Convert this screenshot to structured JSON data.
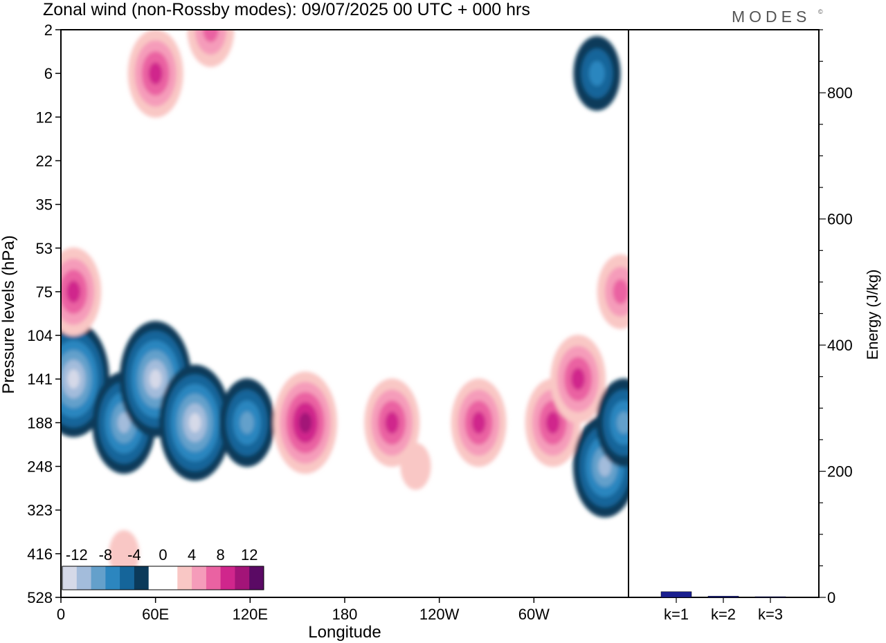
{
  "title": "Zonal wind (non-Rossby modes):  09/07/2025  00 UTC  + 000 hrs",
  "brand": "MODES",
  "brand_mark": "©",
  "colors": {
    "neg": [
      "#0b3a5a",
      "#15659a",
      "#2c86bf",
      "#64a0cb",
      "#a3bcdb",
      "#d5d9e8"
    ],
    "pos": [
      "#f9c7c5",
      "#f59cba",
      "#ea62a2",
      "#d0268c",
      "#a31478",
      "#5a0a64"
    ],
    "bar": "#1a1f8f"
  },
  "chart_data": [
    {
      "type": "heatmap",
      "title": "Zonal wind (non-Rossby modes):  09/07/2025  00 UTC  + 000 hrs",
      "xlabel": "Longitude",
      "ylabel": "Pressure levels (hPa)",
      "x_ticks": [
        "0",
        "60E",
        "120E",
        "180",
        "120W",
        "60W"
      ],
      "y_ticks": [
        "2",
        "6",
        "12",
        "22",
        "35",
        "53",
        "75",
        "104",
        "141",
        "188",
        "248",
        "323",
        "416",
        "528"
      ],
      "colorbar_labels": [
        "-12",
        "-8",
        "-4",
        "0",
        "4",
        "8",
        "12"
      ],
      "color_levels": [
        -14,
        -12,
        -10,
        -8,
        -6,
        -4,
        -2,
        0,
        2,
        4,
        6,
        8,
        10,
        12,
        14
      ],
      "features": [
        {
          "lon": 8,
          "level": "141",
          "value": -13
        },
        {
          "lon": 40,
          "level": "188",
          "value": -11
        },
        {
          "lon": 60,
          "level": "141",
          "value": -13
        },
        {
          "lon": 85,
          "level": "188",
          "value": -12
        },
        {
          "lon": 118,
          "level": "188",
          "value": -8
        },
        {
          "lon": 155,
          "level": "188",
          "value": 10
        },
        {
          "lon": 210,
          "level": "188",
          "value": 9
        },
        {
          "lon": 265,
          "level": "188",
          "value": 9
        },
        {
          "lon": 312,
          "level": "188",
          "value": 8
        },
        {
          "lon": 328,
          "level": "141",
          "value": 9
        },
        {
          "lon": 345,
          "level": "248",
          "value": -10
        },
        {
          "lon": 357,
          "level": "188",
          "value": -9
        },
        {
          "lon": 8,
          "level": "75",
          "value": 8
        },
        {
          "lon": 355,
          "level": "75",
          "value": 7
        },
        {
          "lon": 60,
          "level": "6",
          "value": 9
        },
        {
          "lon": 95,
          "level": "2",
          "value": 7
        },
        {
          "lon": 340,
          "level": "6",
          "value": -6
        },
        {
          "lon": 225,
          "level": "248",
          "value": 3
        },
        {
          "lon": 40,
          "level": "416",
          "value": 3
        }
      ]
    },
    {
      "type": "bar",
      "categories": [
        "k=1",
        "k=2",
        "k=3"
      ],
      "values": [
        9,
        2,
        1
      ],
      "ylabel": "Energy (J/kg)",
      "ylim": [
        0,
        900
      ],
      "y_ticks": [
        0,
        200,
        400,
        600,
        800
      ]
    }
  ]
}
